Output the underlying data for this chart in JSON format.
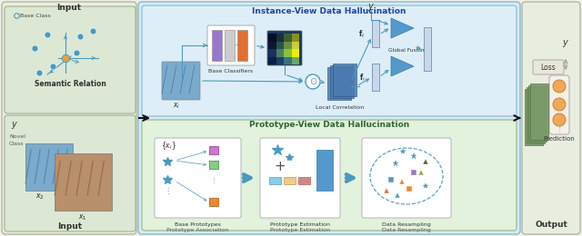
{
  "bg_outer": "#f0f0e8",
  "bg_input": "#e8eedf",
  "bg_middle": "#d8eaf5",
  "bg_output": "#e8eedf",
  "arrow_color": "#4a9abf",
  "dark_arrow": "#222222",
  "instance_title": "Instance-View Data Hallucination",
  "proto_title": "Prototype-View Data Hallucination",
  "label_input": "Input",
  "label_output": "Output",
  "label_semantic": "Semantic Relation",
  "label_base_cls": "Base Classifiers",
  "label_local_corr": "Local Correlation",
  "label_global_fusion": "Global Fusion",
  "label_base_proto": "Base Prototypes",
  "label_proto_assoc": "Prototype Association",
  "label_proto_est": "Prototype Estimation",
  "label_data_resamp": "Data Resampling",
  "label_prediction": "Prediction",
  "label_loss": "Loss",
  "label_novel": "Novel\nClass",
  "bar_colors": [
    "#9977cc",
    "#cccccc",
    "#e07030"
  ],
  "heat_colors": [
    "#0a2040",
    "#1a4060",
    "#3a7080",
    "#6aaa60",
    "#1a3060",
    "#4a8060",
    "#8ac040",
    "#eeee00",
    "#0a1830",
    "#2a5050",
    "#6a9040",
    "#cccc40",
    "#051020",
    "#153040",
    "#3a6030",
    "#8a9020"
  ],
  "proto_sq_colors": [
    "#cc77cc",
    "#88cc88",
    "#ee8833"
  ],
  "proto_sq_colors2": [
    "#88ccee",
    "#eecc88",
    "#cc8888"
  ],
  "resamp_pts": [
    [
      435,
      80,
      "*",
      "#4a9abf",
      5
    ],
    [
      455,
      88,
      "*",
      "#4a9abf",
      5
    ],
    [
      443,
      93,
      "*",
      "#4a9abf",
      4
    ],
    [
      430,
      62,
      "s",
      "#5599cc",
      4
    ],
    [
      450,
      52,
      "s",
      "#ee8833",
      4
    ],
    [
      463,
      70,
      "^",
      "#99aa55",
      4
    ],
    [
      437,
      45,
      "^",
      "#4a9abf",
      4
    ],
    [
      468,
      82,
      "^",
      "#556633",
      4
    ],
    [
      425,
      50,
      "^",
      "#ee6633",
      4
    ],
    [
      455,
      70,
      "s",
      "#9977cc",
      4
    ],
    [
      442,
      60,
      "^",
      "#ee8833",
      4
    ],
    [
      468,
      55,
      "*",
      "#4a9abf",
      4
    ]
  ]
}
